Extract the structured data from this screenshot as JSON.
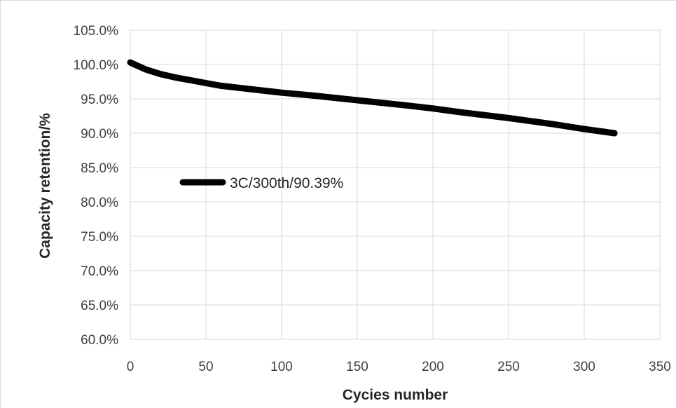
{
  "chart_data": {
    "type": "line",
    "title": "",
    "xlabel": "Cycies number",
    "ylabel": "Capacity retention/%",
    "xlim": [
      0,
      350
    ],
    "ylim": [
      60,
      105
    ],
    "x_ticks": [
      0,
      50,
      100,
      150,
      200,
      250,
      300,
      350
    ],
    "x_tick_labels": [
      "0",
      "50",
      "100",
      "150",
      "200",
      "250",
      "300",
      "350"
    ],
    "y_ticks": [
      60,
      65,
      70,
      75,
      80,
      85,
      90,
      95,
      100,
      105
    ],
    "y_tick_labels": [
      "60.0%",
      "65.0%",
      "70.0%",
      "75.0%",
      "80.0%",
      "85.0%",
      "90.0%",
      "95.0%",
      "100.0%",
      "105.0%"
    ],
    "grid": true,
    "legend_position": "middle-left",
    "line_color": "#000000",
    "series": [
      {
        "name": "3C/300th/90.39%",
        "x": [
          0,
          10,
          20,
          30,
          40,
          50,
          60,
          80,
          100,
          120,
          150,
          180,
          200,
          220,
          250,
          280,
          300,
          320
        ],
        "y": [
          100.3,
          99.3,
          98.6,
          98.1,
          97.7,
          97.3,
          96.9,
          96.4,
          95.9,
          95.5,
          94.8,
          94.1,
          93.6,
          93.0,
          92.2,
          91.3,
          90.6,
          90.0
        ]
      }
    ]
  }
}
